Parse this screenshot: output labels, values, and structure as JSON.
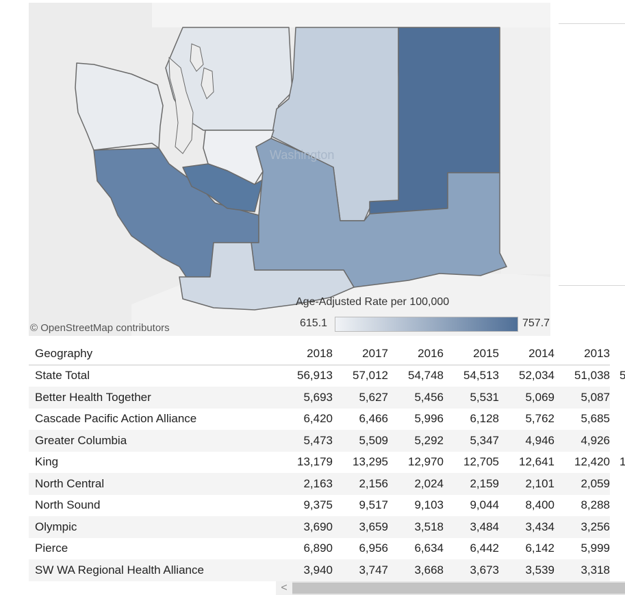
{
  "map": {
    "attribution": "© OpenStreetMap contributors",
    "state_label": "Washington",
    "legend": {
      "title": "Age-Adjusted Rate per 100,000",
      "min": "615.1",
      "max": "757.7",
      "min_color": "#f1f3f6",
      "max_color": "#4f6f97"
    },
    "regions": [
      {
        "name": "Olympic",
        "color": "#e9ecf0"
      },
      {
        "name": "North Sound",
        "color": "#e1e6ec"
      },
      {
        "name": "North Central",
        "color": "#c3cfdd"
      },
      {
        "name": "Better Health Together",
        "color": "#4f6f97"
      },
      {
        "name": "King",
        "color": "#eef0f3"
      },
      {
        "name": "Cascade Pacific Action Alliance",
        "color": "#6583a8"
      },
      {
        "name": "Pierce",
        "color": "#587aa1"
      },
      {
        "name": "Greater Columbia",
        "color": "#8ba3bf"
      },
      {
        "name": "SW WA Regional Health Alliance",
        "color": "#d0d9e4"
      }
    ]
  },
  "chart_data": {
    "type": "table",
    "columns": [
      "Geography",
      "2018",
      "2017",
      "2016",
      "2015",
      "2014",
      "2013"
    ],
    "rows": [
      {
        "geography": "State Total",
        "values": [
          "56,913",
          "57,012",
          "54,748",
          "54,513",
          "52,034",
          "51,038"
        ]
      },
      {
        "geography": "Better Health Together",
        "values": [
          "5,693",
          "5,627",
          "5,456",
          "5,531",
          "5,069",
          "5,087"
        ]
      },
      {
        "geography": "Cascade Pacific Action Alliance",
        "values": [
          "6,420",
          "6,466",
          "5,996",
          "6,128",
          "5,762",
          "5,685"
        ]
      },
      {
        "geography": "Greater Columbia",
        "values": [
          "5,473",
          "5,509",
          "5,292",
          "5,347",
          "4,946",
          "4,926"
        ]
      },
      {
        "geography": "King",
        "values": [
          "13,179",
          "13,295",
          "12,970",
          "12,705",
          "12,641",
          "12,420"
        ]
      },
      {
        "geography": "North Central",
        "values": [
          "2,163",
          "2,156",
          "2,024",
          "2,159",
          "2,101",
          "2,059"
        ]
      },
      {
        "geography": "North Sound",
        "values": [
          "9,375",
          "9,517",
          "9,103",
          "9,044",
          "8,400",
          "8,288"
        ]
      },
      {
        "geography": "Olympic",
        "values": [
          "3,690",
          "3,659",
          "3,518",
          "3,484",
          "3,434",
          "3,256"
        ]
      },
      {
        "geography": "Pierce",
        "values": [
          "6,890",
          "6,956",
          "6,634",
          "6,442",
          "6,142",
          "5,999"
        ]
      },
      {
        "geography": "SW WA Regional Health Alliance",
        "values": [
          "3,940",
          "3,747",
          "3,668",
          "3,673",
          "3,539",
          "3,318"
        ]
      }
    ],
    "clipped_column_fragments": [
      "5",
      "",
      "",
      "",
      "1",
      "",
      "",
      "",
      "",
      ""
    ]
  },
  "scrollbar": {
    "left_arrow": "<"
  }
}
